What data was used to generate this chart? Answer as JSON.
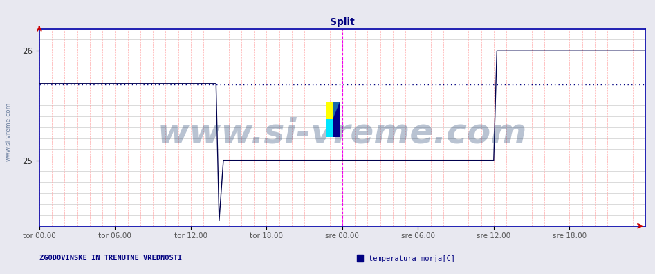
{
  "title": "Split",
  "title_color": "#000080",
  "title_fontsize": 10,
  "bg_color": "#e8e8f0",
  "plot_bg_color": "#ffffff",
  "line_color": "#00004d",
  "ylim": [
    24.4,
    26.2
  ],
  "yticks": [
    25.0,
    26.0
  ],
  "ytick_labels": [
    "25",
    "26"
  ],
  "xlim": [
    0,
    576
  ],
  "xtick_positions": [
    0,
    72,
    144,
    216,
    288,
    360,
    432,
    504
  ],
  "xtick_labels": [
    "tor 00:00",
    "tor 06:00",
    "tor 12:00",
    "tor 18:00",
    "sre 00:00",
    "sre 06:00",
    "sre 12:00",
    "sre 18:00"
  ],
  "hgrid_color": "#c0c0c0",
  "vgrid_color": "#ffaaaa",
  "avg_line_y": 25.695,
  "avg_line_color": "#000080",
  "midnight_line_x": 288,
  "midnight_line_color": "#ee00ee",
  "watermark_text": "www.si-vreme.com",
  "watermark_color": "#1a3a6a",
  "watermark_alpha": 0.3,
  "watermark_fontsize": 36,
  "left_label": "www.si-vreme.com",
  "left_label_color": "#1a3a6a",
  "bottom_left_text": "ZGODOVINSKE IN TRENUTNE VREDNOSTI",
  "bottom_left_color": "#000080",
  "legend_label": "temperatura morja[C]",
  "legend_color": "#000080",
  "legend_box_color": "#000080",
  "seg1_x0": 0,
  "seg1_x1": 168,
  "seg1_y": 25.7,
  "seg2_x0": 168,
  "seg2_x1": 175,
  "seg2_y0": 25.7,
  "seg2_y1": 25.0,
  "seg3_x0": 175,
  "seg3_x1": 363,
  "seg3_y": 25.0,
  "seg4_x0": 363,
  "seg4_x1": 370,
  "seg4_y0": 25.0,
  "seg4_y1": 25.0,
  "seg5_x0": 432,
  "seg5_x1": 435,
  "seg5_y0": 25.0,
  "seg5_y1": 26.0,
  "seg6_x0": 435,
  "seg6_x1": 576,
  "seg6_y": 26.0
}
